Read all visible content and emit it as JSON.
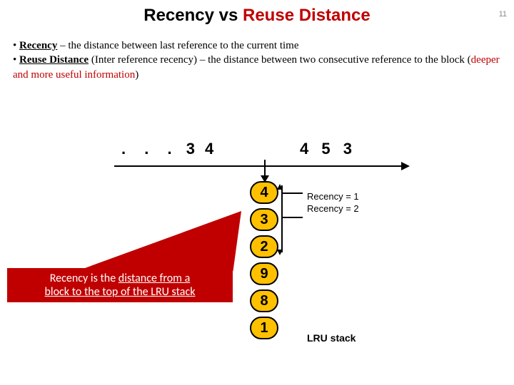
{
  "page_number": "11",
  "title": {
    "left": "Recency vs ",
    "right": "Reuse Distance"
  },
  "bullet1": {
    "term": "Recency",
    "rest": " – the distance between last reference to the current time"
  },
  "bullet2": {
    "term": "Reuse Distance",
    "paren": " (Inter reference recency)",
    "mid": " – the distance between two consecutive reference to the block (",
    "red": "deeper and more useful information",
    "close": ")"
  },
  "sequence": {
    "dots": ". . .",
    "past": "3 4",
    "future": "4  5  3"
  },
  "stack": [
    "4",
    "3",
    "2",
    "9",
    "8",
    "1"
  ],
  "stack_label": "LRU stack",
  "recency_lines": [
    "Recency = 1",
    "Recency = 2"
  ],
  "callout": {
    "pre": "Recency",
    "mid": " is the ",
    "u1": "distance from a",
    "br": " ",
    "u2": "block to the top of the LRU stack"
  },
  "colors": {
    "cell_fill": "#ffc000",
    "callout_fill": "#c00000",
    "title_red": "#c00000"
  }
}
